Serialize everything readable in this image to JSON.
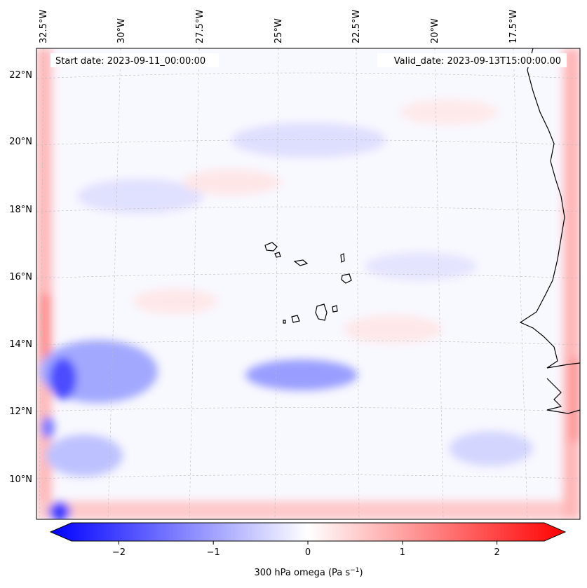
{
  "start_date": "Start date: 2023-09-11_00:00:00",
  "valid_date": "Valid_date: 2023-09-13T15:00:00.00",
  "lon_labels": [
    "32.5°W",
    "30°W",
    "27.5°W",
    "25°W",
    "22.5°W",
    "20°W",
    "17.5°W"
  ],
  "lat_labels": [
    "22°N",
    "20°N",
    "18°N",
    "16°N",
    "14°N",
    "12°N",
    "10°N"
  ],
  "colorbar": {
    "ticks": [
      "−2",
      "−1",
      "0",
      "1",
      "2"
    ],
    "label_main": "300 hPa omega (Pa s",
    "label_sup": "−1",
    "label_end": ")",
    "min": -2.7,
    "max": 2.7,
    "color_low": "#0000ff",
    "color_mid": "#ffffff",
    "color_high": "#ff0000"
  },
  "map": {
    "variable": "300 hPa omega",
    "units": "Pa s−1",
    "gridlines": true,
    "coastline_color": "#000000"
  }
}
